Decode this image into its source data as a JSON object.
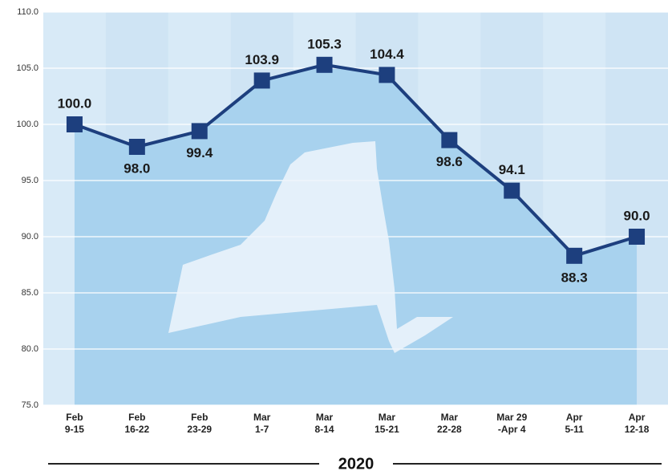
{
  "chart_data": {
    "type": "line",
    "categories": [
      "Feb\n9-15",
      "Feb\n16-22",
      "Feb\n23-29",
      "Mar\n1-7",
      "Mar\n8-14",
      "Mar\n15-21",
      "Mar\n22-28",
      "Mar 29\n-Apr 4",
      "Apr\n5-11",
      "Apr\n12-18"
    ],
    "series": [
      {
        "color": "#1d3f7e",
        "values": [
          100.0,
          98.0,
          99.4,
          103.9,
          105.3,
          104.4,
          98.6,
          94.1,
          88.3,
          90.0
        ],
        "value_labels": [
          "100.0",
          "98.0",
          "99.4",
          "103.9",
          "105.3",
          "104.4",
          "98.6",
          "94.1",
          "88.3",
          "90.0"
        ]
      }
    ],
    "ylim": [
      75,
      110
    ],
    "yticks": [
      {
        "value": 75,
        "label": "75.0"
      },
      {
        "value": 80,
        "label": "80.0"
      },
      {
        "value": 85,
        "label": "85.0"
      },
      {
        "value": 90,
        "label": "90.0"
      },
      {
        "value": 95,
        "label": "95.0"
      },
      {
        "value": 100,
        "label": "100.0"
      },
      {
        "value": 105,
        "label": "105.0"
      },
      {
        "value": 110,
        "label": "110.0"
      }
    ],
    "grid": true,
    "xlabel": "2020"
  }
}
